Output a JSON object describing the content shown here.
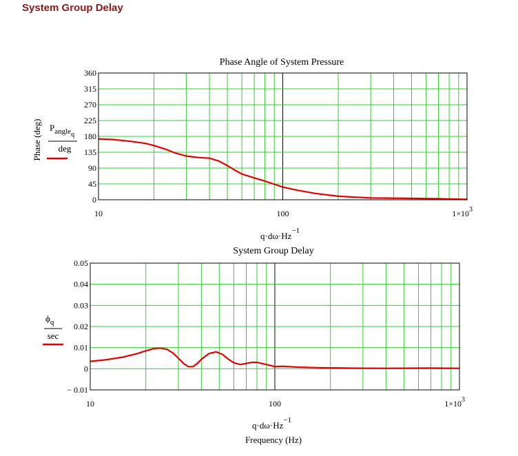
{
  "heading": "System Group Delay",
  "chart_data": [
    {
      "type": "line",
      "title": "Phase Angle of System Pressure",
      "ylabel_outer": "Phase (deg)",
      "y_expr_num": "P",
      "y_expr_sub": "angle",
      "y_expr_subsub": "q",
      "y_expr_den": "deg",
      "x_expr": "q·dω·Hz",
      "x_expr_exp": "−1",
      "x_scale": "log",
      "xlim": [
        10,
        1000
      ],
      "ylim": [
        0,
        360
      ],
      "x_ticks": [
        "10",
        "100",
        "1×10"
      ],
      "x_tick_last_exp": "3",
      "y_ticks": [
        "360",
        "315",
        "270",
        "225",
        "180",
        "135",
        "90",
        "45",
        "0"
      ],
      "grid": true,
      "color": "#e00000",
      "series": [
        {
          "x": [
            10,
            12,
            15,
            18,
            20,
            23,
            26,
            30,
            35,
            40,
            45,
            50,
            55,
            60,
            70,
            80,
            90,
            100,
            120,
            150,
            200,
            300,
            500,
            700,
            1000
          ],
          "y": [
            173,
            171,
            166,
            160,
            154,
            144,
            133,
            124,
            120,
            118,
            110,
            97,
            84,
            73,
            62,
            53,
            44,
            36,
            27,
            18,
            10,
            5,
            4,
            3,
            1
          ]
        }
      ]
    },
    {
      "type": "line",
      "title": "System Group Delay",
      "y_expr_num": "ϕ",
      "y_expr_sub": "q",
      "y_expr_den": "sec",
      "x_expr": "q·dω·Hz",
      "x_expr_exp": "−1",
      "xlabel": "Frequency (Hz)",
      "x_scale": "log",
      "xlim": [
        10,
        1000
      ],
      "ylim": [
        -0.01,
        0.05
      ],
      "x_ticks": [
        "10",
        "100",
        "1×10"
      ],
      "x_tick_last_exp": "3",
      "y_ticks": [
        "0.05",
        "0.04",
        "0.03",
        "0.02",
        "0.01",
        "0",
        "− 0.01"
      ],
      "grid": true,
      "color": "#e00000",
      "series": [
        {
          "x": [
            10,
            12,
            15,
            18,
            20,
            22,
            24,
            26,
            28,
            30,
            32,
            34,
            36,
            38,
            40,
            44,
            48,
            52,
            56,
            60,
            65,
            70,
            75,
            80,
            85,
            90,
            95,
            100,
            110,
            130,
            170,
            250,
            400,
            700,
            1000
          ],
          "y": [
            0.0035,
            0.0042,
            0.0055,
            0.0072,
            0.0085,
            0.0095,
            0.0098,
            0.0092,
            0.0075,
            0.005,
            0.0025,
            0.001,
            0.001,
            0.0025,
            0.0045,
            0.0072,
            0.008,
            0.0068,
            0.0045,
            0.0028,
            0.002,
            0.0025,
            0.003,
            0.003,
            0.0025,
            0.002,
            0.0015,
            0.001,
            0.0012,
            0.0008,
            0.0005,
            0.0003,
            0.0002,
            0.0003,
            0.0002
          ]
        }
      ]
    }
  ]
}
